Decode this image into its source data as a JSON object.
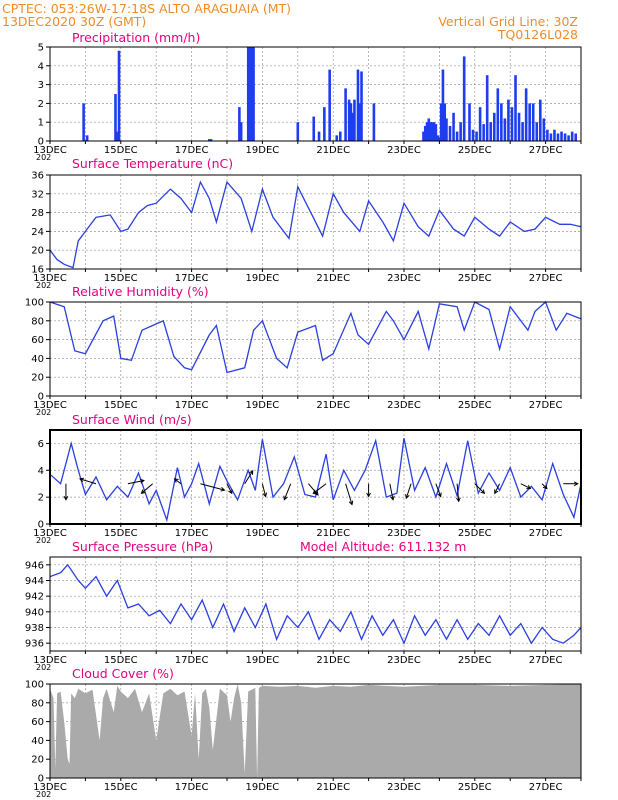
{
  "header": {
    "line1_left": "CPTEC:   053:26W-17:18S   ALTO ARAGUAIA (MT)",
    "line2_left": "13DEC2020 30Z (GMT)",
    "line2_right": "Vertical Grid Line: 30Z",
    "line3_right": "TQ0126L028",
    "model_altitude": "Model Altitude: 611.132 m"
  },
  "colors": {
    "header": "#f08c28",
    "panel_title": "#e6007e",
    "series": "#2a3fe0",
    "bars": "#1f3df0",
    "cloud": "#aaaaaa"
  },
  "x_axis": {
    "tick_labels": [
      "13DEC",
      "15DEC",
      "17DEC",
      "19DEC",
      "21DEC",
      "23DEC",
      "25DEC",
      "27DEC"
    ],
    "truncated_year": "202"
  },
  "chart_data": [
    {
      "id": "precip",
      "type": "bar",
      "title": "Precipitation (mm/h)",
      "ylim": [
        0,
        5
      ],
      "yticks": [
        0,
        1,
        2,
        3,
        4,
        5
      ],
      "xlim": [
        0,
        15
      ],
      "grid": true,
      "x": [
        0.95,
        1.05,
        1.85,
        1.9,
        1.95,
        4.5,
        4.55,
        5.35,
        5.4,
        5.6,
        5.65,
        5.7,
        5.75,
        7.0,
        7.45,
        7.6,
        7.75,
        7.9,
        8.1,
        8.2,
        8.35,
        8.45,
        8.5,
        8.55,
        8.6,
        8.7,
        8.75,
        8.8,
        9.15,
        10.55,
        10.6,
        10.65,
        10.7,
        10.75,
        10.8,
        10.85,
        10.9,
        10.95,
        11.0,
        11.05,
        11.1,
        11.15,
        11.2,
        11.3,
        11.4,
        11.5,
        11.6,
        11.7,
        11.85,
        11.95,
        12.05,
        12.15,
        12.25,
        12.35,
        12.45,
        12.55,
        12.65,
        12.75,
        12.85,
        12.95,
        13.05,
        13.15,
        13.25,
        13.35,
        13.45,
        13.55,
        13.65,
        13.75,
        13.85,
        13.95,
        14.05,
        14.15,
        14.25,
        14.35,
        14.45,
        14.55,
        14.65,
        14.75,
        14.85
      ],
      "values": [
        2.0,
        0.3,
        2.5,
        0.5,
        4.8,
        0.1,
        0.1,
        1.8,
        1.0,
        5.0,
        5.0,
        5.0,
        5.0,
        1.0,
        1.3,
        0.5,
        1.8,
        3.8,
        0.3,
        0.5,
        2.8,
        2.2,
        2.0,
        1.5,
        2.2,
        3.8,
        2.0,
        3.7,
        2.0,
        0.5,
        0.8,
        1.0,
        1.2,
        1.0,
        1.0,
        1.0,
        0.9,
        0.3,
        0.2,
        2.0,
        3.8,
        2.0,
        1.2,
        0.8,
        1.5,
        0.5,
        1.0,
        4.5,
        2.0,
        0.6,
        0.5,
        1.8,
        0.9,
        3.5,
        1.0,
        1.5,
        2.8,
        2.0,
        1.2,
        2.2,
        1.8,
        3.5,
        1.5,
        1.0,
        2.8,
        2.0,
        2.0,
        1.0,
        2.2,
        1.2,
        0.6,
        0.4,
        0.6,
        0.4,
        0.5,
        0.4,
        0.3,
        0.5,
        0.4
      ]
    },
    {
      "id": "temp",
      "type": "line",
      "title": "Surface Temperature (nC)",
      "ylim": [
        16,
        36
      ],
      "yticks": [
        16,
        20,
        24,
        28,
        32,
        36
      ],
      "xlim": [
        0,
        15
      ],
      "grid": true,
      "x": [
        0.0,
        0.2,
        0.4,
        0.65,
        0.8,
        1.0,
        1.3,
        1.7,
        2.0,
        2.2,
        2.5,
        2.75,
        3.0,
        3.4,
        3.7,
        4.0,
        4.25,
        4.5,
        4.7,
        5.0,
        5.4,
        5.7,
        6.0,
        6.3,
        6.75,
        7.0,
        7.4,
        7.7,
        8.0,
        8.3,
        8.75,
        9.0,
        9.4,
        9.7,
        10.0,
        10.4,
        10.7,
        11.0,
        11.4,
        11.7,
        12.0,
        12.4,
        12.7,
        13.0,
        13.4,
        13.7,
        14.0,
        14.4,
        14.7,
        15.0
      ],
      "values": [
        20.0,
        18.0,
        17.0,
        16.3,
        22.0,
        24.0,
        27.0,
        27.5,
        24.0,
        24.5,
        28.0,
        29.5,
        30.0,
        33.0,
        31.0,
        28.0,
        34.5,
        31.0,
        26.0,
        34.5,
        31.0,
        24.0,
        33.0,
        27.0,
        22.5,
        33.5,
        27.5,
        23.0,
        32.0,
        28.0,
        24.0,
        30.5,
        26.0,
        22.0,
        30.0,
        25.0,
        23.0,
        28.5,
        24.5,
        23.0,
        27.0,
        24.5,
        23.0,
        26.0,
        24.0,
        24.5,
        27.0,
        25.5,
        25.5,
        25.0
      ]
    },
    {
      "id": "rh",
      "type": "line",
      "title": "Relative Humidity (%)",
      "ylim": [
        0,
        100
      ],
      "yticks": [
        0,
        20,
        40,
        60,
        80,
        100
      ],
      "xlim": [
        0,
        15
      ],
      "grid": true,
      "x": [
        0.0,
        0.4,
        0.7,
        1.0,
        1.5,
        1.8,
        2.0,
        2.3,
        2.6,
        2.9,
        3.2,
        3.5,
        3.8,
        4.0,
        4.5,
        4.7,
        5.0,
        5.5,
        5.75,
        6.0,
        6.4,
        6.7,
        7.0,
        7.5,
        7.7,
        8.0,
        8.5,
        8.7,
        9.0,
        9.5,
        9.7,
        10.0,
        10.4,
        10.7,
        11.0,
        11.5,
        11.7,
        12.0,
        12.4,
        12.7,
        13.0,
        13.5,
        13.7,
        14.0,
        14.3,
        14.6,
        15.0
      ],
      "values": [
        100.0,
        95.0,
        48.0,
        45.0,
        80.0,
        85.0,
        40.0,
        38.0,
        70.0,
        75.0,
        80.0,
        42.0,
        30.0,
        28.0,
        65.0,
        75.0,
        25.0,
        30.0,
        70.0,
        80.0,
        40.0,
        30.0,
        68.0,
        75.0,
        38.0,
        45.0,
        88.0,
        65.0,
        55.0,
        90.0,
        80.0,
        60.0,
        90.0,
        50.0,
        98.0,
        95.0,
        70.0,
        100.0,
        92.0,
        50.0,
        95.0,
        70.0,
        90.0,
        100.0,
        70.0,
        88.0,
        82.0
      ]
    },
    {
      "id": "wind",
      "type": "line",
      "title": "Surface Wind (m/s)",
      "ylim": [
        0,
        7
      ],
      "yticks": [
        0,
        2,
        4,
        6
      ],
      "xlim": [
        0,
        15
      ],
      "grid": true,
      "x": [
        0.0,
        0.3,
        0.6,
        0.8,
        1.0,
        1.3,
        1.6,
        1.9,
        2.2,
        2.5,
        2.8,
        3.0,
        3.3,
        3.6,
        3.8,
        4.0,
        4.2,
        4.5,
        4.8,
        5.0,
        5.3,
        5.6,
        5.8,
        6.0,
        6.3,
        6.6,
        6.9,
        7.2,
        7.5,
        7.8,
        8.0,
        8.3,
        8.6,
        8.9,
        9.2,
        9.5,
        9.8,
        10.0,
        10.3,
        10.6,
        10.9,
        11.2,
        11.5,
        11.8,
        12.1,
        12.4,
        12.7,
        13.0,
        13.3,
        13.6,
        13.9,
        14.2,
        14.5,
        14.8,
        15.0
      ],
      "values": [
        3.7,
        3.0,
        6.0,
        4.0,
        2.2,
        3.5,
        1.8,
        2.8,
        2.0,
        3.8,
        1.5,
        2.5,
        0.3,
        4.2,
        2.0,
        3.0,
        4.5,
        1.5,
        4.3,
        3.2,
        1.8,
        4.0,
        2.5,
        6.3,
        2.0,
        3.0,
        5.0,
        2.2,
        2.0,
        5.2,
        1.8,
        4.0,
        2.5,
        4.0,
        6.2,
        2.0,
        2.3,
        6.4,
        2.5,
        4.2,
        2.0,
        4.5,
        2.1,
        6.2,
        2.3,
        3.8,
        2.5,
        4.2,
        2.0,
        2.8,
        1.8,
        4.5,
        2.2,
        0.5,
        3.0
      ],
      "vectors": [
        {
          "x": 0.45,
          "u": 0.0,
          "v": -1.0
        },
        {
          "x": 1.3,
          "u": -1.0,
          "v": 0.3
        },
        {
          "x": 2.2,
          "u": 1.0,
          "v": 0.2
        },
        {
          "x": 2.9,
          "u": -0.7,
          "v": -0.6
        },
        {
          "x": 3.7,
          "u": -0.4,
          "v": 0.3
        },
        {
          "x": 4.25,
          "u": 1.5,
          "v": -0.4
        },
        {
          "x": 5.0,
          "u": 0.3,
          "v": -0.6
        },
        {
          "x": 5.5,
          "u": 0.5,
          "v": 0.8
        },
        {
          "x": 6.0,
          "u": 0.2,
          "v": -0.8
        },
        {
          "x": 6.8,
          "u": -0.4,
          "v": -1.0
        },
        {
          "x": 7.3,
          "u": 0.6,
          "v": -0.7
        },
        {
          "x": 7.8,
          "u": -0.8,
          "v": -0.6
        },
        {
          "x": 8.35,
          "u": 0.4,
          "v": -1.3
        },
        {
          "x": 9.0,
          "u": 0.0,
          "v": -0.8
        },
        {
          "x": 9.6,
          "u": 0.2,
          "v": -1.0
        },
        {
          "x": 10.2,
          "u": -0.3,
          "v": -0.9
        },
        {
          "x": 10.9,
          "u": 0.3,
          "v": -0.8
        },
        {
          "x": 11.5,
          "u": 0.1,
          "v": -1.1
        },
        {
          "x": 12.0,
          "u": 0.6,
          "v": -0.6
        },
        {
          "x": 12.7,
          "u": -0.3,
          "v": -0.6
        },
        {
          "x": 13.3,
          "u": 0.6,
          "v": -0.3
        },
        {
          "x": 13.9,
          "u": 0.3,
          "v": -0.3
        },
        {
          "x": 14.5,
          "u": 0.9,
          "v": 0.0
        }
      ]
    },
    {
      "id": "pres",
      "type": "line",
      "title": "Surface Pressure (hPa)",
      "ylim": [
        935,
        947
      ],
      "yticks": [
        936,
        938,
        940,
        942,
        944,
        946
      ],
      "xlim": [
        0,
        15
      ],
      "grid": true,
      "x": [
        0.0,
        0.3,
        0.5,
        0.8,
        1.0,
        1.3,
        1.6,
        1.9,
        2.2,
        2.5,
        2.8,
        3.1,
        3.4,
        3.7,
        4.0,
        4.3,
        4.6,
        4.9,
        5.2,
        5.5,
        5.8,
        6.1,
        6.4,
        6.7,
        7.0,
        7.3,
        7.6,
        7.9,
        8.2,
        8.5,
        8.8,
        9.1,
        9.4,
        9.7,
        10.0,
        10.3,
        10.6,
        10.9,
        11.2,
        11.5,
        11.8,
        12.1,
        12.4,
        12.7,
        13.0,
        13.3,
        13.6,
        13.9,
        14.2,
        14.5,
        14.8,
        15.0
      ],
      "values": [
        944.5,
        945.0,
        946.0,
        944.0,
        943.0,
        944.5,
        942.0,
        944.0,
        940.5,
        941.0,
        939.5,
        940.2,
        938.5,
        941.0,
        939.0,
        941.5,
        938.0,
        941.0,
        937.5,
        940.5,
        938.0,
        941.0,
        936.5,
        939.5,
        938.0,
        940.0,
        936.5,
        939.0,
        937.5,
        940.0,
        936.5,
        939.5,
        937.0,
        939.0,
        936.0,
        939.5,
        937.0,
        939.0,
        936.5,
        939.0,
        936.5,
        938.5,
        937.0,
        939.5,
        937.0,
        938.5,
        936.0,
        938.0,
        936.5,
        936.0,
        937.0,
        938.0
      ]
    },
    {
      "id": "cloud",
      "type": "area",
      "title": "Cloud Cover (%)",
      "ylim": [
        0,
        100
      ],
      "yticks": [
        0,
        20,
        40,
        60,
        80,
        100
      ],
      "xlim": [
        0,
        15
      ],
      "grid": true,
      "x": [
        0.0,
        0.1,
        0.15,
        0.2,
        0.3,
        0.4,
        0.5,
        0.55,
        0.6,
        0.7,
        0.8,
        1.0,
        1.2,
        1.4,
        1.5,
        1.6,
        1.8,
        1.9,
        2.0,
        2.2,
        2.4,
        2.6,
        2.8,
        3.0,
        3.2,
        3.4,
        3.6,
        3.8,
        4.0,
        4.1,
        4.2,
        4.3,
        4.4,
        4.5,
        4.6,
        4.8,
        5.0,
        5.1,
        5.2,
        5.3,
        5.4,
        5.5,
        5.6,
        5.8,
        5.85,
        5.9,
        6.0,
        6.5,
        7.0,
        7.5,
        8.0,
        8.5,
        9.0,
        9.5,
        10.0,
        11.0,
        12.0,
        13.0,
        14.0,
        15.0
      ],
      "values": [
        95.0,
        85.0,
        10.0,
        90.0,
        92.0,
        60.0,
        20.0,
        15.0,
        90.0,
        85.0,
        95.0,
        90.0,
        94.0,
        40.0,
        85.0,
        95.0,
        70.0,
        98.0,
        92.0,
        85.0,
        95.0,
        70.0,
        90.0,
        40.0,
        90.0,
        95.0,
        88.0,
        92.0,
        45.0,
        90.0,
        20.0,
        90.0,
        95.0,
        75.0,
        30.0,
        95.0,
        88.0,
        60.0,
        85.0,
        100.0,
        80.0,
        5.0,
        92.0,
        96.0,
        0.0,
        96.0,
        98.0,
        97.0,
        98.0,
        96.0,
        98.0,
        97.0,
        99.0,
        98.0,
        97.0,
        99.0,
        99.0,
        98.0,
        99.0,
        100.0
      ]
    }
  ]
}
